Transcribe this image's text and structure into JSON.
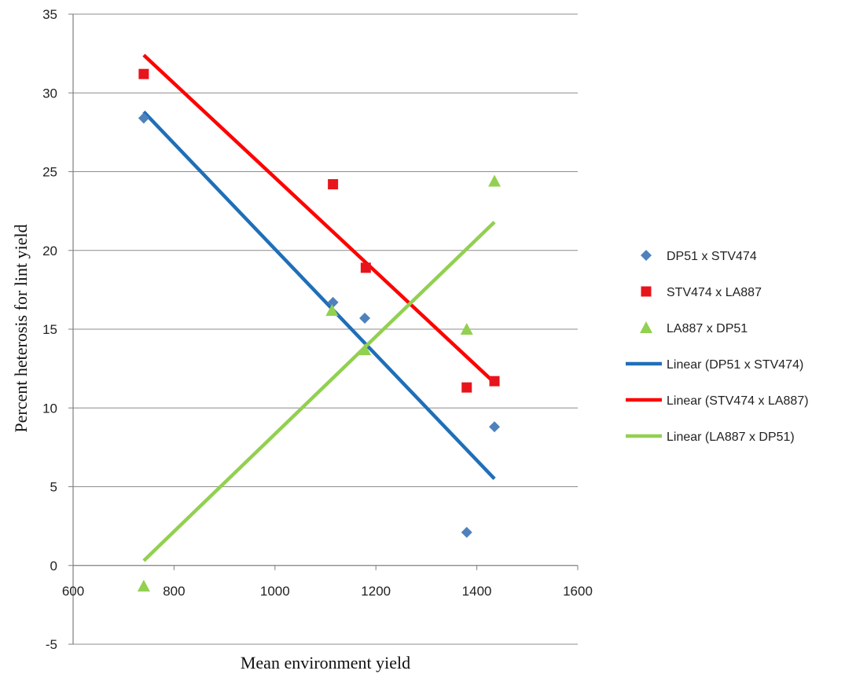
{
  "chart_data": {
    "type": "scatter",
    "title": "",
    "xlabel": "Mean environment  yield",
    "ylabel": "Percent  heterosis  for lint  yield",
    "xlim": [
      600,
      1600
    ],
    "ylim": [
      -5,
      35
    ],
    "xticks": [
      600,
      800,
      1000,
      1200,
      1400,
      1600
    ],
    "yticks": [
      -5,
      0,
      5,
      10,
      15,
      20,
      25,
      30,
      35
    ],
    "grid": "horizontal",
    "legend_position": "right",
    "series": [
      {
        "name": "DP51 x STV474",
        "marker": "diamond",
        "color": "#4f81bd",
        "x": [
          740,
          1115,
          1178,
          1380,
          1435
        ],
        "y": [
          28.4,
          16.7,
          15.7,
          2.1,
          8.8
        ]
      },
      {
        "name": "STV474 x LA887",
        "marker": "square",
        "color": "#e8141c",
        "x": [
          740,
          1115,
          1180,
          1380,
          1435
        ],
        "y": [
          31.2,
          24.2,
          18.9,
          11.3,
          11.7
        ]
      },
      {
        "name": "LA887 x DP51",
        "marker": "triangle",
        "color": "#92d050",
        "x": [
          740,
          1113,
          1178,
          1380,
          1435
        ],
        "y": [
          -1.3,
          16.2,
          13.7,
          15.0,
          24.4
        ]
      }
    ],
    "trendlines": [
      {
        "name": "Linear (DP51 x STV474)",
        "color": "#1f6fb8",
        "x": [
          740,
          1435
        ],
        "y": [
          28.8,
          5.5
        ]
      },
      {
        "name": "Linear (STV474 x LA887)",
        "color": "#ff0000",
        "x": [
          740,
          1435
        ],
        "y": [
          32.4,
          11.6
        ]
      },
      {
        "name": "Linear (LA887 x DP51)",
        "color": "#92d050",
        "x": [
          740,
          1435
        ],
        "y": [
          0.3,
          21.8
        ]
      }
    ]
  }
}
